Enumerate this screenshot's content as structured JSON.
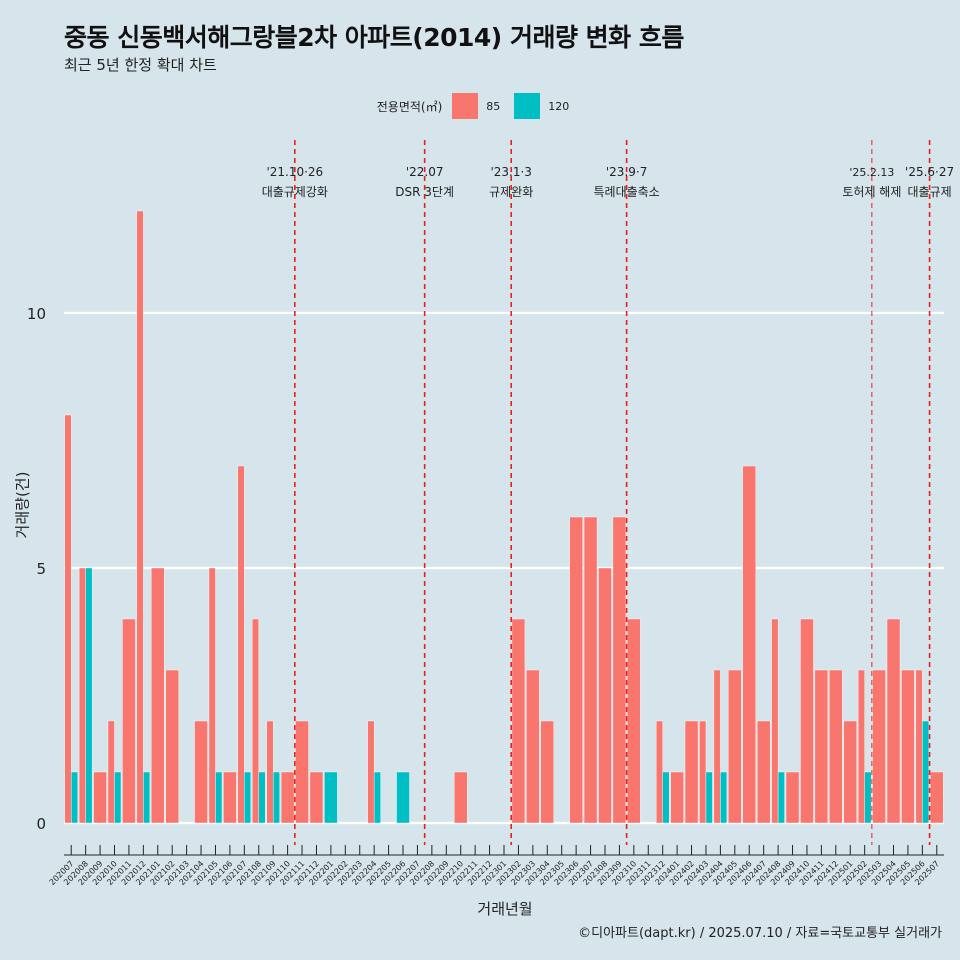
{
  "title": "중동 신동백서해그랑블2차 아파트(2014) 거래량 변화 흐름",
  "subtitle": "최근 5년 한정 확대 차트",
  "caption": "©디아파트(dapt.kr) / 2025.07.10 / 자료=국토교통부 실거래가",
  "colors": {
    "background": "#d6e4ec",
    "s85": "#f8766d",
    "s120": "#00bfc4",
    "vline": "#e8201c",
    "grid": "#ffffff"
  },
  "chart_data": {
    "type": "bar",
    "title": "중동 신동백서해그랑블2차 아파트(2014) 거래량 변화 흐름",
    "subtitle": "최근 5년 한정 확대 차트",
    "xlabel": "거래년월",
    "ylabel": "거래량(건)",
    "ylim": [
      0,
      12
    ],
    "yticks": [
      0,
      5,
      10
    ],
    "legend_title": "전용면적(㎡)",
    "legend_position": "top",
    "grid": true,
    "categories": [
      "202007",
      "202008",
      "202009",
      "202010",
      "202011",
      "202012",
      "202101",
      "202102",
      "202103",
      "202104",
      "202105",
      "202106",
      "202107",
      "202108",
      "202109",
      "202110",
      "202111",
      "202112",
      "202201",
      "202202",
      "202203",
      "202204",
      "202205",
      "202206",
      "202207",
      "202208",
      "202209",
      "202210",
      "202211",
      "202212",
      "202301",
      "202302",
      "202303",
      "202304",
      "202305",
      "202306",
      "202307",
      "202308",
      "202309",
      "202310",
      "202311",
      "202312",
      "202401",
      "202402",
      "202403",
      "202404",
      "202405",
      "202406",
      "202407",
      "202408",
      "202409",
      "202410",
      "202411",
      "202412",
      "202501",
      "202502",
      "202503",
      "202504",
      "202505",
      "202506",
      "202507"
    ],
    "series": [
      {
        "name": "85",
        "values": [
          8,
          5,
          1,
          2,
          4,
          12,
          5,
          3,
          0,
          2,
          5,
          1,
          7,
          4,
          2,
          1,
          2,
          1,
          0,
          0,
          0,
          2,
          0,
          0,
          0,
          0,
          0,
          1,
          0,
          0,
          0,
          4,
          3,
          2,
          0,
          6,
          6,
          5,
          6,
          4,
          0,
          2,
          1,
          2,
          2,
          3,
          3,
          7,
          2,
          4,
          1,
          4,
          3,
          3,
          2,
          3,
          3,
          4,
          3,
          3,
          1
        ]
      },
      {
        "name": "120",
        "values": [
          1,
          5,
          0,
          1,
          0,
          1,
          0,
          0,
          0,
          0,
          1,
          0,
          1,
          1,
          1,
          0,
          0,
          0,
          1,
          0,
          0,
          1,
          0,
          1,
          0,
          0,
          0,
          0,
          0,
          0,
          0,
          0,
          0,
          0,
          0,
          0,
          0,
          0,
          0,
          0,
          0,
          1,
          0,
          0,
          1,
          1,
          0,
          0,
          0,
          1,
          0,
          0,
          0,
          0,
          0,
          1,
          0,
          0,
          0,
          2,
          0
        ]
      }
    ],
    "events": [
      {
        "index": 15,
        "date": "'21.10·26",
        "label": "대출규제강화"
      },
      {
        "index": 24,
        "date": "'22.07",
        "label": "DSR 3단계"
      },
      {
        "index": 30,
        "date": "'23.1·3",
        "label": "규제완화"
      },
      {
        "index": 38,
        "date": "'23.9·7",
        "label": "특례대출축소"
      },
      {
        "index": 55,
        "date": "'25.2.13",
        "label": "토허제 해제"
      },
      {
        "index": 59,
        "date": "'25.6·27",
        "label": "대출규제"
      }
    ]
  }
}
